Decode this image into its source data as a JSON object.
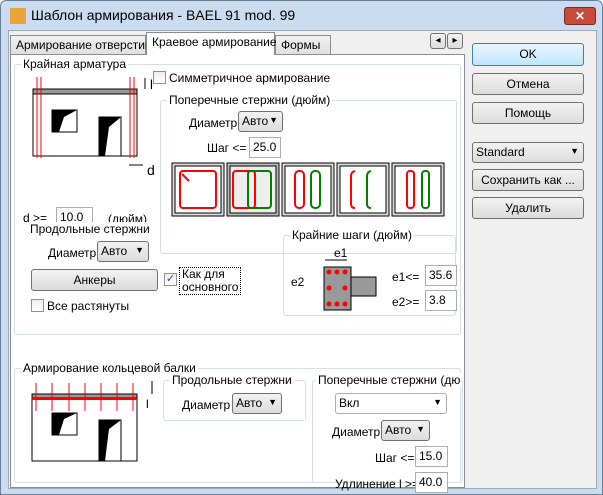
{
  "window": {
    "title": "Шаблон армирования - BAEL 91 mod. 99",
    "close": "✕"
  },
  "tabs": [
    {
      "label": "Армирование отверстий"
    },
    {
      "label": "Краевое армирование"
    },
    {
      "label": "Формы"
    }
  ],
  "tab_scroll": {
    "left": "◂",
    "right": "▸"
  },
  "edge": {
    "title": "Крайная арматура",
    "symmetric_label": "Симметричное армирование",
    "symmetric_checked": false,
    "dim_l": "l",
    "dim_d": "d",
    "d_label": "d >=",
    "d_value": "10.0",
    "d_unit": "(дюйм)",
    "transverse": {
      "title": "Поперечные стержни (дюйм)",
      "diameter_label": "Диаметр",
      "diameter_value": "Авто",
      "step_label": "Шаг <=",
      "step_value": "25.0"
    },
    "longitudinal": {
      "title": "Продольные стержни",
      "diameter_label": "Диаметр",
      "diameter_value": "Авто",
      "anchors_label": "Анкеры",
      "same_label_1": "Как для",
      "same_label_2": "основного",
      "same_checked": true,
      "all_tension_label": "Все растянуты",
      "all_tension_checked": false
    },
    "edge_steps": {
      "title": "Крайние шаги (дюйм)",
      "e1_diagram": "e1",
      "e2_diagram": "e2",
      "e1_label": "e1<=",
      "e1_value": "35.6",
      "e2_label": "e2>=",
      "e2_value": "3.8"
    }
  },
  "ring": {
    "title": "Армирование кольцевой балки",
    "dim_l": "l",
    "longitudinal": {
      "title": "Продольные стержни",
      "diameter_label": "Диаметр",
      "diameter_value": "Авто"
    },
    "transverse": {
      "title": "Поперечные стержни (дюйм)",
      "mode_value": "Вкл",
      "diameter_label": "Диаметр",
      "diameter_value": "Авто",
      "step_label": "Шаг <=",
      "step_value": "15.0",
      "ext_label": "Удлинение l >=",
      "ext_value": "40.0"
    }
  },
  "buttons": {
    "ok": "OK",
    "cancel": "Отмена",
    "help": "Помощь",
    "standard": "Standard",
    "save_as": "Сохранить как ...",
    "delete": "Удалить"
  },
  "colors": {
    "rebar_red": "#ff0000",
    "rebar_green": "#008000"
  }
}
